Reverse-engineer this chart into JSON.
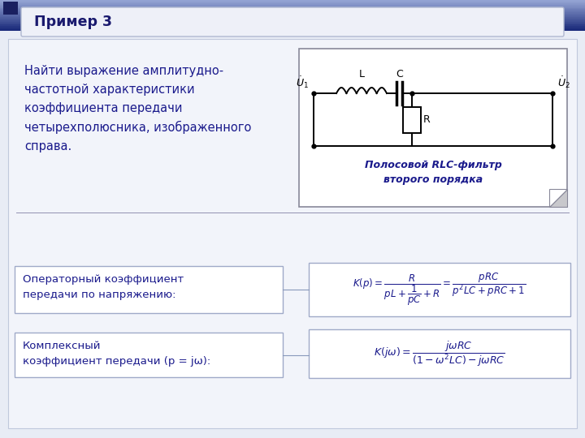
{
  "title": "Пример 3",
  "slide_bg": "#e8ecf5",
  "header_box_bg": "#eef0f8",
  "header_box_edge": "#b0b8d0",
  "header_text_color": "#1a1a6e",
  "body_text_color": "#1a1a8c",
  "box_edge_color": "#a0aac8",
  "formula_color": "#1a1a8c",
  "circuit_caption": "Полосовой RLC-фильтр\nвторого порядка",
  "description_text": "Найти выражение амплитудно-\nчастотной характеристики\nкоэффициента передачи\nчетырехполюсника, изображенного\nсправа.",
  "label1_text": "Операторный коэффициент\nпередачи по напряжению:",
  "label2_text": "Комплексный\nкоэффициент передачи (р = jω):",
  "top_bar_color1": "#1a2a7a",
  "top_bar_color2": "#6070c0",
  "top_bar_color3": "#9aa8d8",
  "accent_sq_color": "#223388"
}
